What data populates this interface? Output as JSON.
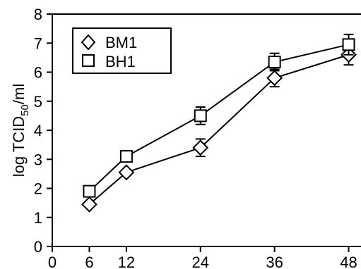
{
  "chart_data": {
    "type": "line",
    "title": "",
    "xlabel": "",
    "ylabel": {
      "prefix": "log TCID",
      "subscript": "50",
      "suffix": "/ml"
    },
    "x_ticks": [
      "0",
      "6",
      "12",
      "24",
      "36",
      "48"
    ],
    "y_ticks": [
      "0",
      "1",
      "2",
      "3",
      "4",
      "5",
      "6",
      "7",
      "8"
    ],
    "xlim": [
      0,
      50
    ],
    "ylim": [
      0,
      8
    ],
    "grid": false,
    "legend_position": "top-left",
    "x": [
      6,
      12,
      24,
      36,
      48
    ],
    "series": [
      {
        "name": "BM1",
        "marker": "diamond",
        "values": [
          1.45,
          2.55,
          3.4,
          5.8,
          6.6
        ],
        "errors": [
          0.0,
          0.0,
          0.3,
          0.3,
          0.35
        ]
      },
      {
        "name": "BH1",
        "marker": "square",
        "values": [
          1.9,
          3.1,
          4.5,
          6.35,
          6.95
        ],
        "errors": [
          0.0,
          0.0,
          0.3,
          0.3,
          0.35
        ]
      }
    ],
    "colors": {
      "line": "#000000",
      "marker_fill": "#ffffff"
    }
  }
}
